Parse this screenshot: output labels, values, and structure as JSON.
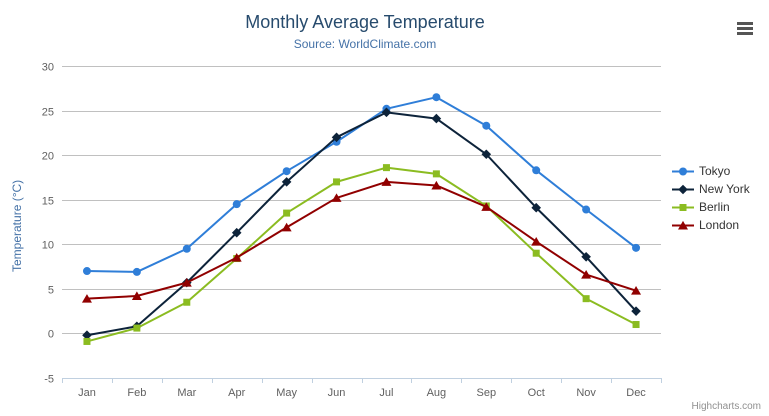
{
  "credits": "Highcharts.com",
  "chart_data": {
    "type": "line",
    "title": "Monthly Average Temperature",
    "subtitle": "Source: WorldClimate.com",
    "xlabel": "",
    "ylabel": "Temperature (°C)",
    "ylim": [
      -5,
      30
    ],
    "ytick_step": 5,
    "grid": true,
    "legend_position": "right",
    "categories": [
      "Jan",
      "Feb",
      "Mar",
      "Apr",
      "May",
      "Jun",
      "Jul",
      "Aug",
      "Sep",
      "Oct",
      "Nov",
      "Dec"
    ],
    "series": [
      {
        "name": "Tokyo",
        "color": "#2f7ed8",
        "marker": "circle",
        "values": [
          7.0,
          6.9,
          9.5,
          14.5,
          18.2,
          21.5,
          25.2,
          26.5,
          23.3,
          18.3,
          13.9,
          9.6
        ]
      },
      {
        "name": "New York",
        "color": "#0d233a",
        "marker": "diamond",
        "values": [
          -0.2,
          0.8,
          5.7,
          11.3,
          17.0,
          22.0,
          24.8,
          24.1,
          20.1,
          14.1,
          8.6,
          2.5
        ]
      },
      {
        "name": "Berlin",
        "color": "#8bbc21",
        "marker": "square",
        "values": [
          -0.9,
          0.6,
          3.5,
          8.4,
          13.5,
          17.0,
          18.6,
          17.9,
          14.3,
          9.0,
          3.9,
          1.0
        ]
      },
      {
        "name": "London",
        "color": "#910000",
        "marker": "triangle",
        "values": [
          3.9,
          4.2,
          5.7,
          8.5,
          11.9,
          15.2,
          17.0,
          16.6,
          14.2,
          10.3,
          6.6,
          4.8
        ]
      }
    ]
  },
  "axis_colors": {
    "grid_line": "#C0C0C0",
    "axis_line": "#C0D0E0",
    "tick_label": "#606060"
  }
}
